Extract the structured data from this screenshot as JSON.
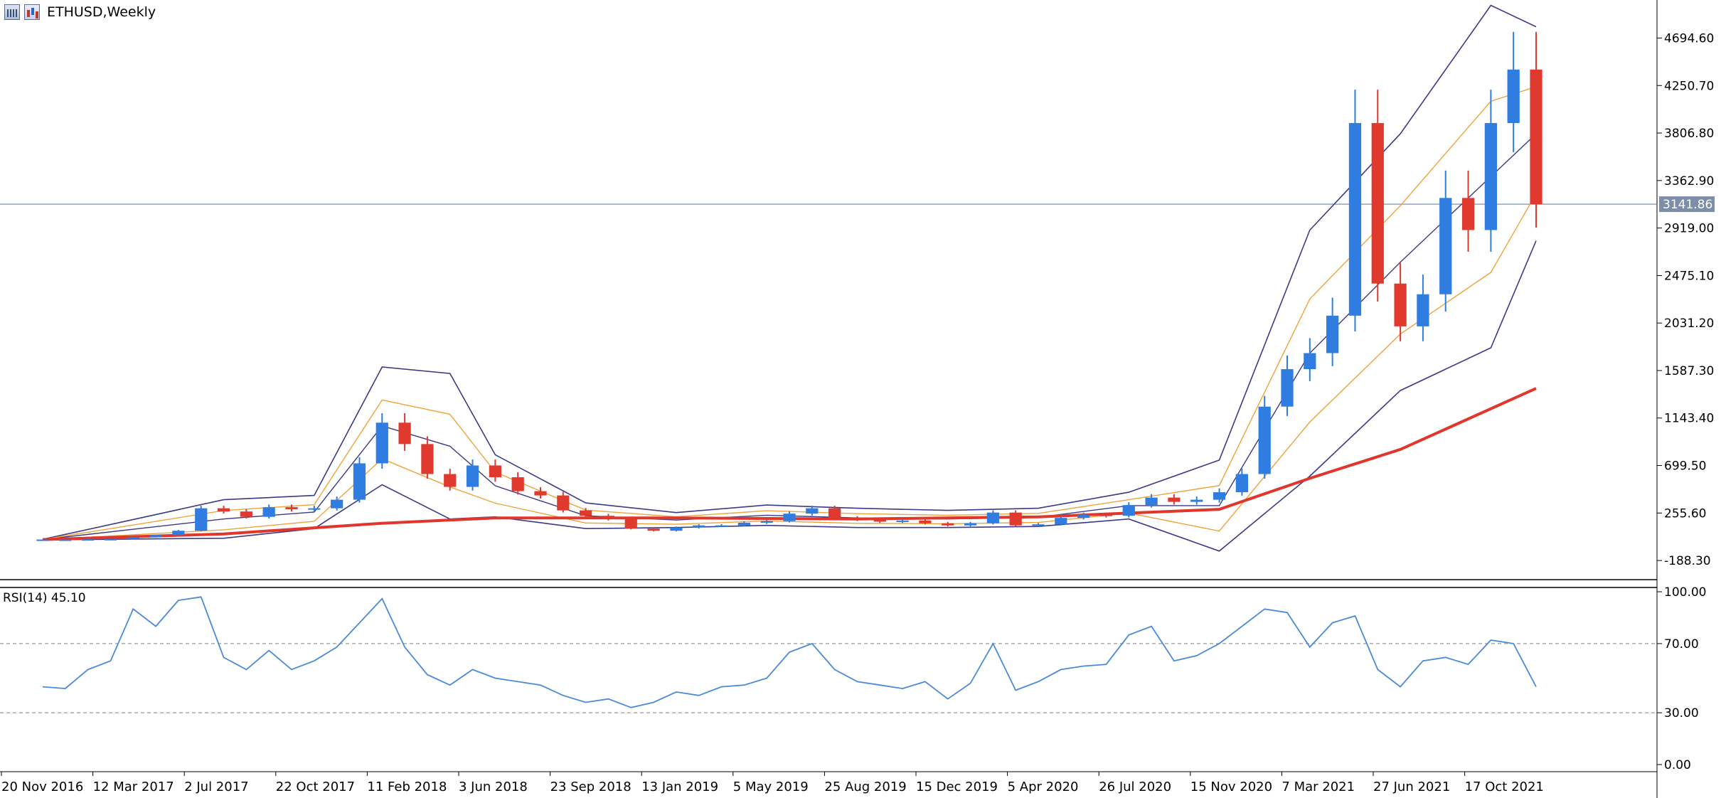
{
  "header": {
    "symbol": "ETHUSD,Weekly"
  },
  "colors": {
    "bull": "#2f7de1",
    "bear": "#e03a2f",
    "bb_band": "#3b3a86",
    "ma_thin": "#f0a23a",
    "ma_thick": "#e0362c",
    "rsi_line": "#4a8ad8",
    "level_line": "#6b84a8",
    "price_tag_bg": "#7d8ea9",
    "axis": "#000000"
  },
  "chart_data": [
    {
      "type": "candlestick",
      "title": "ETHUSD,Weekly",
      "y_ticks": [
        "4694.60",
        "4250.70",
        "3806.80",
        "3362.90",
        "2919.00",
        "2475.10",
        "2031.20",
        "1587.30",
        "1143.40",
        "699.50",
        "255.60",
        "-188.30"
      ],
      "y_range": [
        -500,
        5050
      ],
      "x_tick_labels": [
        "20 Nov 2016",
        "12 Mar 2017",
        "2 Jul 2017",
        "22 Oct 2017",
        "11 Feb 2018",
        "3 Jun 2018",
        "23 Sep 2018",
        "13 Jan 2019",
        "5 May 2019",
        "25 Aug 2019",
        "15 Dec 2019",
        "5 Apr 2020",
        "26 Jul 2020",
        "15 Nov 2020",
        "7 Mar 2021",
        "27 Jun 2021",
        "17 Oct 2021"
      ],
      "current_price": "3141.86",
      "current_price_value": 3141.86,
      "series": [
        {
          "name": "ETHUSD close",
          "x": [
            "2016-11-20",
            "2016-12-18",
            "2017-01-15",
            "2017-02-12",
            "2017-03-12",
            "2017-04-09",
            "2017-05-07",
            "2017-06-04",
            "2017-07-02",
            "2017-07-30",
            "2017-08-27",
            "2017-09-24",
            "2017-10-22",
            "2017-11-19",
            "2017-12-17",
            "2018-01-14",
            "2018-02-11",
            "2018-03-11",
            "2018-04-08",
            "2018-05-06",
            "2018-06-03",
            "2018-07-01",
            "2018-07-29",
            "2018-08-26",
            "2018-09-23",
            "2018-10-21",
            "2018-11-18",
            "2018-12-16",
            "2019-01-13",
            "2019-02-10",
            "2019-03-10",
            "2019-04-07",
            "2019-05-05",
            "2019-06-02",
            "2019-06-30",
            "2019-07-28",
            "2019-08-25",
            "2019-09-22",
            "2019-10-20",
            "2019-11-17",
            "2019-12-15",
            "2020-01-12",
            "2020-02-09",
            "2020-03-08",
            "2020-04-05",
            "2020-05-03",
            "2020-05-31",
            "2020-06-28",
            "2020-07-26",
            "2020-08-23",
            "2020-09-20",
            "2020-10-18",
            "2020-11-15",
            "2020-12-13",
            "2021-01-10",
            "2021-02-07",
            "2021-03-07",
            "2021-04-04",
            "2021-05-02",
            "2021-05-30",
            "2021-06-27",
            "2021-07-25",
            "2021-08-22",
            "2021-09-19",
            "2021-10-17",
            "2021-11-14",
            "2021-12-12"
          ],
          "values": [
            8,
            8,
            11,
            13,
            29,
            50,
            90,
            300,
            270,
            220,
            310,
            290,
            300,
            380,
            720,
            1100,
            900,
            620,
            500,
            700,
            590,
            460,
            420,
            280,
            230,
            200,
            110,
            90,
            120,
            140,
            140,
            165,
            180,
            250,
            300,
            210,
            195,
            175,
            185,
            160,
            140,
            160,
            260,
            140,
            150,
            210,
            240,
            230,
            330,
            400,
            360,
            380,
            450,
            620,
            1250,
            1600,
            1750,
            2100,
            3900,
            2400,
            2000,
            2300,
            3200,
            2900,
            3900,
            4400,
            3141.86
          ]
        },
        {
          "name": "Bollinger upper",
          "x": [
            "2016-11-20",
            "2017-07-02",
            "2017-10-22",
            "2018-01-14",
            "2018-04-08",
            "2018-06-03",
            "2018-09-23",
            "2019-01-13",
            "2019-05-05",
            "2019-08-25",
            "2019-12-15",
            "2020-04-05",
            "2020-07-26",
            "2020-11-15",
            "2021-03-07",
            "2021-06-27",
            "2021-10-17",
            "2021-12-12"
          ],
          "values": [
            10,
            380,
            420,
            1620,
            1560,
            800,
            350,
            260,
            330,
            300,
            280,
            300,
            450,
            750,
            2900,
            3800,
            5000,
            4800
          ]
        },
        {
          "name": "Bollinger lower",
          "x": [
            "2016-11-20",
            "2017-07-02",
            "2017-10-22",
            "2018-01-14",
            "2018-04-08",
            "2018-06-03",
            "2018-09-23",
            "2019-01-13",
            "2019-05-05",
            "2019-08-25",
            "2019-12-15",
            "2020-04-05",
            "2020-07-26",
            "2020-11-15",
            "2021-03-07",
            "2021-06-27",
            "2021-10-17",
            "2021-12-12"
          ],
          "values": [
            5,
            20,
            110,
            520,
            200,
            220,
            110,
            120,
            140,
            120,
            120,
            130,
            200,
            -100,
            600,
            1400,
            1800,
            2800
          ]
        },
        {
          "name": "Moving average (thick)",
          "x": [
            "2016-11-20",
            "2017-07-02",
            "2018-01-14",
            "2018-06-03",
            "2019-01-13",
            "2019-08-25",
            "2020-04-05",
            "2020-11-15",
            "2021-03-07",
            "2021-06-27",
            "2021-12-12"
          ],
          "values": [
            8,
            60,
            160,
            210,
            210,
            200,
            220,
            290,
            580,
            850,
            1420
          ]
        }
      ]
    },
    {
      "type": "line",
      "title": "RSI(14) 45.10",
      "y_ticks": [
        "100.00",
        "70.00",
        "30.00",
        "0.00"
      ],
      "y_range": [
        0,
        100
      ],
      "levels": [
        30,
        70
      ],
      "series": [
        {
          "name": "RSI(14)",
          "x": [
            "2016-11-20",
            "2016-12-18",
            "2017-01-15",
            "2017-02-12",
            "2017-03-12",
            "2017-04-09",
            "2017-05-07",
            "2017-06-04",
            "2017-07-02",
            "2017-07-30",
            "2017-08-27",
            "2017-09-24",
            "2017-10-22",
            "2017-11-19",
            "2017-12-17",
            "2018-01-14",
            "2018-02-11",
            "2018-03-11",
            "2018-04-08",
            "2018-05-06",
            "2018-06-03",
            "2018-07-01",
            "2018-07-29",
            "2018-08-26",
            "2018-09-23",
            "2018-10-21",
            "2018-11-18",
            "2018-12-16",
            "2019-01-13",
            "2019-02-10",
            "2019-03-10",
            "2019-04-07",
            "2019-05-05",
            "2019-06-02",
            "2019-06-30",
            "2019-07-28",
            "2019-08-25",
            "2019-09-22",
            "2019-10-20",
            "2019-11-17",
            "2019-12-15",
            "2020-01-12",
            "2020-02-09",
            "2020-03-08",
            "2020-04-05",
            "2020-05-03",
            "2020-05-31",
            "2020-06-28",
            "2020-07-26",
            "2020-08-23",
            "2020-09-20",
            "2020-10-18",
            "2020-11-15",
            "2020-12-13",
            "2021-01-10",
            "2021-02-07",
            "2021-03-07",
            "2021-04-04",
            "2021-05-02",
            "2021-05-30",
            "2021-06-27",
            "2021-07-25",
            "2021-08-22",
            "2021-09-19",
            "2021-10-17",
            "2021-11-14",
            "2021-12-12"
          ],
          "values": [
            45,
            44,
            55,
            60,
            90,
            80,
            95,
            97,
            62,
            55,
            66,
            55,
            60,
            68,
            82,
            96,
            68,
            52,
            46,
            55,
            50,
            48,
            46,
            40,
            36,
            38,
            33,
            36,
            42,
            40,
            45,
            46,
            50,
            65,
            70,
            55,
            48,
            46,
            44,
            48,
            38,
            47,
            70,
            43,
            48,
            55,
            57,
            58,
            75,
            80,
            60,
            63,
            70,
            80,
            90,
            88,
            68,
            82,
            86,
            55,
            45,
            60,
            62,
            58,
            72,
            70,
            45
          ]
        }
      ]
    }
  ]
}
